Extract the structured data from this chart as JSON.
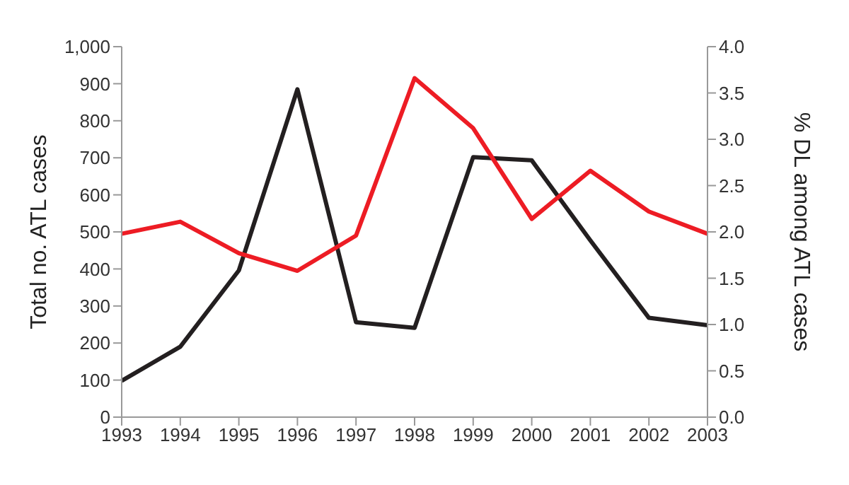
{
  "chart_data": {
    "type": "line",
    "categories": [
      "1993",
      "1994",
      "1995",
      "1996",
      "1997",
      "1998",
      "1999",
      "2000",
      "2001",
      "2002",
      "2003"
    ],
    "series": [
      {
        "color": "#231f20",
        "values": [
          98,
          190,
          396,
          885,
          256,
          241,
          702,
          693,
          477,
          268,
          248
        ]
      },
      {
        "color": "#ed1c24",
        "axis": "y2",
        "values": [
          1.98,
          2.11,
          1.77,
          1.58,
          1.96,
          3.66,
          3.12,
          2.14,
          2.66,
          2.22,
          1.98
        ]
      }
    ],
    "ylabel": "Total no. ATL cases",
    "y2label": "% DL among ATL cases",
    "ylim": [
      0,
      1000
    ],
    "yticks": [
      0,
      100,
      200,
      300,
      400,
      500,
      600,
      700,
      800,
      900,
      {
        "value": 1000,
        "label": "1,000"
      }
    ],
    "y2lim": [
      0,
      4
    ],
    "y2ticks": [
      {
        "value": 0,
        "label": "0.0"
      },
      0.5,
      {
        "value": 1,
        "label": "1.0"
      },
      1.5,
      {
        "value": 2,
        "label": "2.0"
      },
      2.5,
      {
        "value": 3,
        "label": "3.0"
      },
      3.5,
      {
        "value": 4,
        "label": "4.0"
      }
    ],
    "grid": false,
    "legend": false,
    "marker": "none",
    "line_style": "solid"
  }
}
